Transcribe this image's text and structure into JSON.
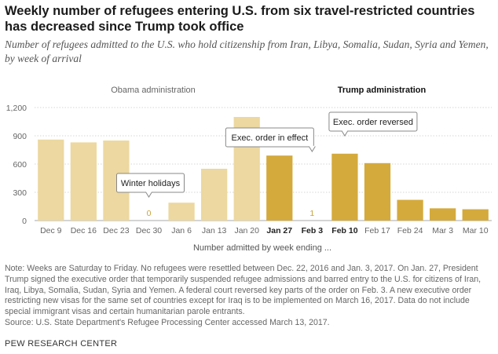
{
  "title": "Weekly number of refugees entering U.S. from six travel-restricted countries has decreased since Trump took office",
  "subtitle": "Number of refugees admitted to the U.S. who hold citizenship from Iran, Libya, Somalia, Sudan, Syria and Yemen, by week of arrival",
  "colors": {
    "obama": "#ecd8a0",
    "trump": "#d4aa3c",
    "zero_label": "#c9a23a"
  },
  "chart_data": {
    "type": "bar",
    "title": "Weekly number of refugees entering U.S. from six travel-restricted countries has decreased since Trump took office",
    "xlabel": "Number admitted by week ending ...",
    "ylabel": "",
    "ylim": [
      0,
      1200
    ],
    "yticks": [
      0,
      300,
      600,
      900,
      1200
    ],
    "ytick_labels": [
      "0",
      "300",
      "600",
      "900",
      "1,200"
    ],
    "grid": true,
    "categories": [
      "Dec 9",
      "Dec 16",
      "Dec 23",
      "Dec 30",
      "Jan 6",
      "Jan 13",
      "Jan 20",
      "Jan 27",
      "Feb 3",
      "Feb 10",
      "Feb 17",
      "Feb 24",
      "Mar 3",
      "Mar 10"
    ],
    "values": [
      860,
      830,
      850,
      0,
      190,
      550,
      1100,
      690,
      1,
      710,
      610,
      220,
      130,
      120
    ],
    "bar_groups": [
      "obama",
      "obama",
      "obama",
      "obama",
      "obama",
      "obama",
      "obama",
      "trump",
      "trump",
      "trump",
      "trump",
      "trump",
      "trump",
      "trump"
    ],
    "bold_categories": [
      "Jan 27",
      "Feb 3",
      "Feb 10"
    ],
    "value_labels": {
      "3": "0",
      "8": "1"
    },
    "administration_labels": {
      "obama": "Obama administration",
      "trump": "Trump administration"
    },
    "annotations": [
      {
        "text": "Winter holidays",
        "category": "Dec 30"
      },
      {
        "text": "Exec. order in effect",
        "category": "Feb 3"
      },
      {
        "text": "Exec. order reversed",
        "category": "Feb 10"
      }
    ]
  },
  "notes": [
    "Note: Weeks are Saturday to Friday. No refugees were resettled between Dec. 22, 2016 and Jan. 3, 2017. On Jan. 27, President Trump signed the executive order that temporarily suspended refugee admissions and barred entry to the U.S. for citizens of Iran, Iraq, Libya, Somalia, Sudan, Syria and Yemen. A federal court reversed key parts of the order on Feb. 3. A new executive order restricting new visas for the same set of countries except for Iraq is to be implemented on March 16, 2017. Data do not include special immigrant visas and certain humanitarian parole entrants.",
    "Source: U.S. State Department's Refugee Processing Center accessed March 13, 2017."
  ],
  "brand": "PEW RESEARCH CENTER"
}
